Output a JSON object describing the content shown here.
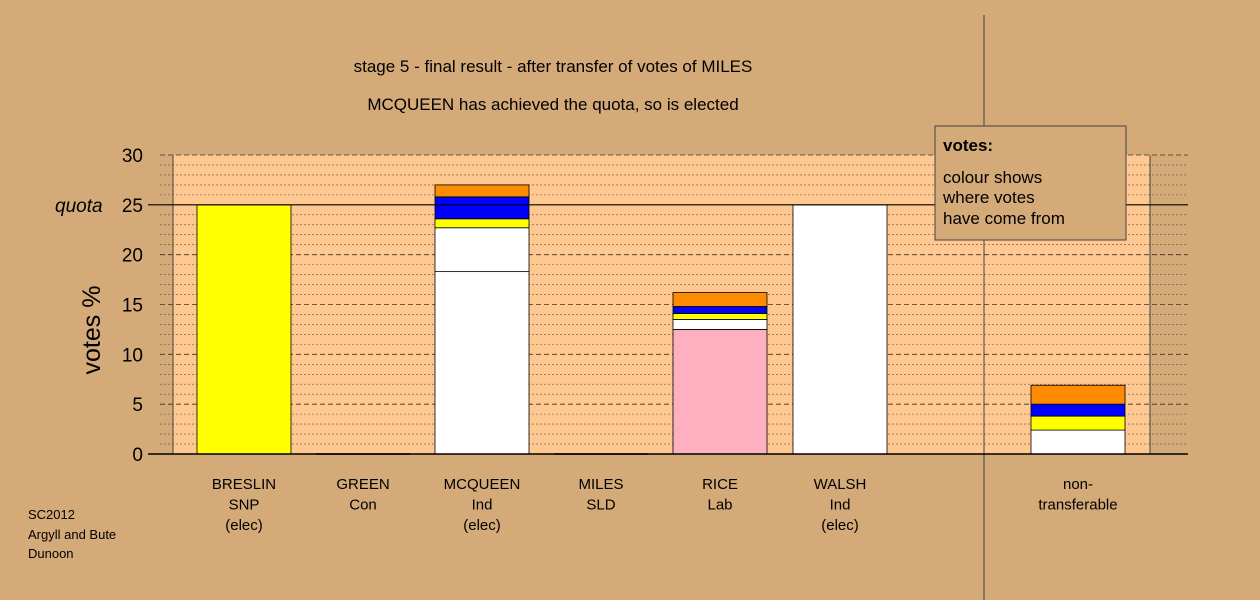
{
  "chart_data": {
    "type": "bar",
    "title": "stage 5 - final result - after transfer of votes of MILES",
    "subtitle": "MCQUEEN has achieved the quota, so is elected",
    "ylabel": "votes %",
    "ylim": [
      0,
      30
    ],
    "yticks": [
      0,
      5,
      10,
      15,
      20,
      25,
      30
    ],
    "quota_label": "quota",
    "quota_value": 25,
    "candidates": [
      {
        "name": "BRESLIN",
        "party": "SNP",
        "status": "(elec)",
        "segments": [
          {
            "color": "#ffff00",
            "value": 25.0
          }
        ]
      },
      {
        "name": "GREEN",
        "party": "Con",
        "status": "",
        "segments": []
      },
      {
        "name": "MCQUEEN",
        "party": "Ind",
        "status": "(elec)",
        "segments": [
          {
            "color": "#ffffff",
            "value": 18.3
          },
          {
            "color": "#ffffff",
            "value": 4.4
          },
          {
            "color": "#ffff00",
            "value": 0.9
          },
          {
            "color": "#0000ff",
            "value": 2.2
          },
          {
            "color": "#ff8c00",
            "value": 1.2
          }
        ]
      },
      {
        "name": "MILES",
        "party": "SLD",
        "status": "",
        "segments": []
      },
      {
        "name": "RICE",
        "party": "Lab",
        "status": "",
        "segments": [
          {
            "color": "#ffb0c0",
            "value": 12.5
          },
          {
            "color": "#ffffff",
            "value": 1.0
          },
          {
            "color": "#ffff00",
            "value": 0.6
          },
          {
            "color": "#0000ff",
            "value": 0.7
          },
          {
            "color": "#ff8c00",
            "value": 1.4
          }
        ]
      },
      {
        "name": "WALSH",
        "party": "Ind",
        "status": "(elec)",
        "segments": [
          {
            "color": "#ffffff",
            "value": 25.0
          }
        ]
      }
    ],
    "nontransferable": {
      "label_lines": [
        "non-",
        "transferable"
      ],
      "segments": [
        {
          "color": "#ffffff",
          "value": 2.4
        },
        {
          "color": "#ffff00",
          "value": 1.4
        },
        {
          "color": "#0000ff",
          "value": 1.2
        },
        {
          "color": "#ff8c00",
          "value": 1.9
        }
      ]
    },
    "legend": {
      "title": "votes:",
      "lines": [
        "colour shows",
        "where votes",
        "have come from"
      ]
    }
  },
  "footer": {
    "lines": [
      "SC2012",
      "Argyll and Bute",
      "Dunoon"
    ]
  }
}
